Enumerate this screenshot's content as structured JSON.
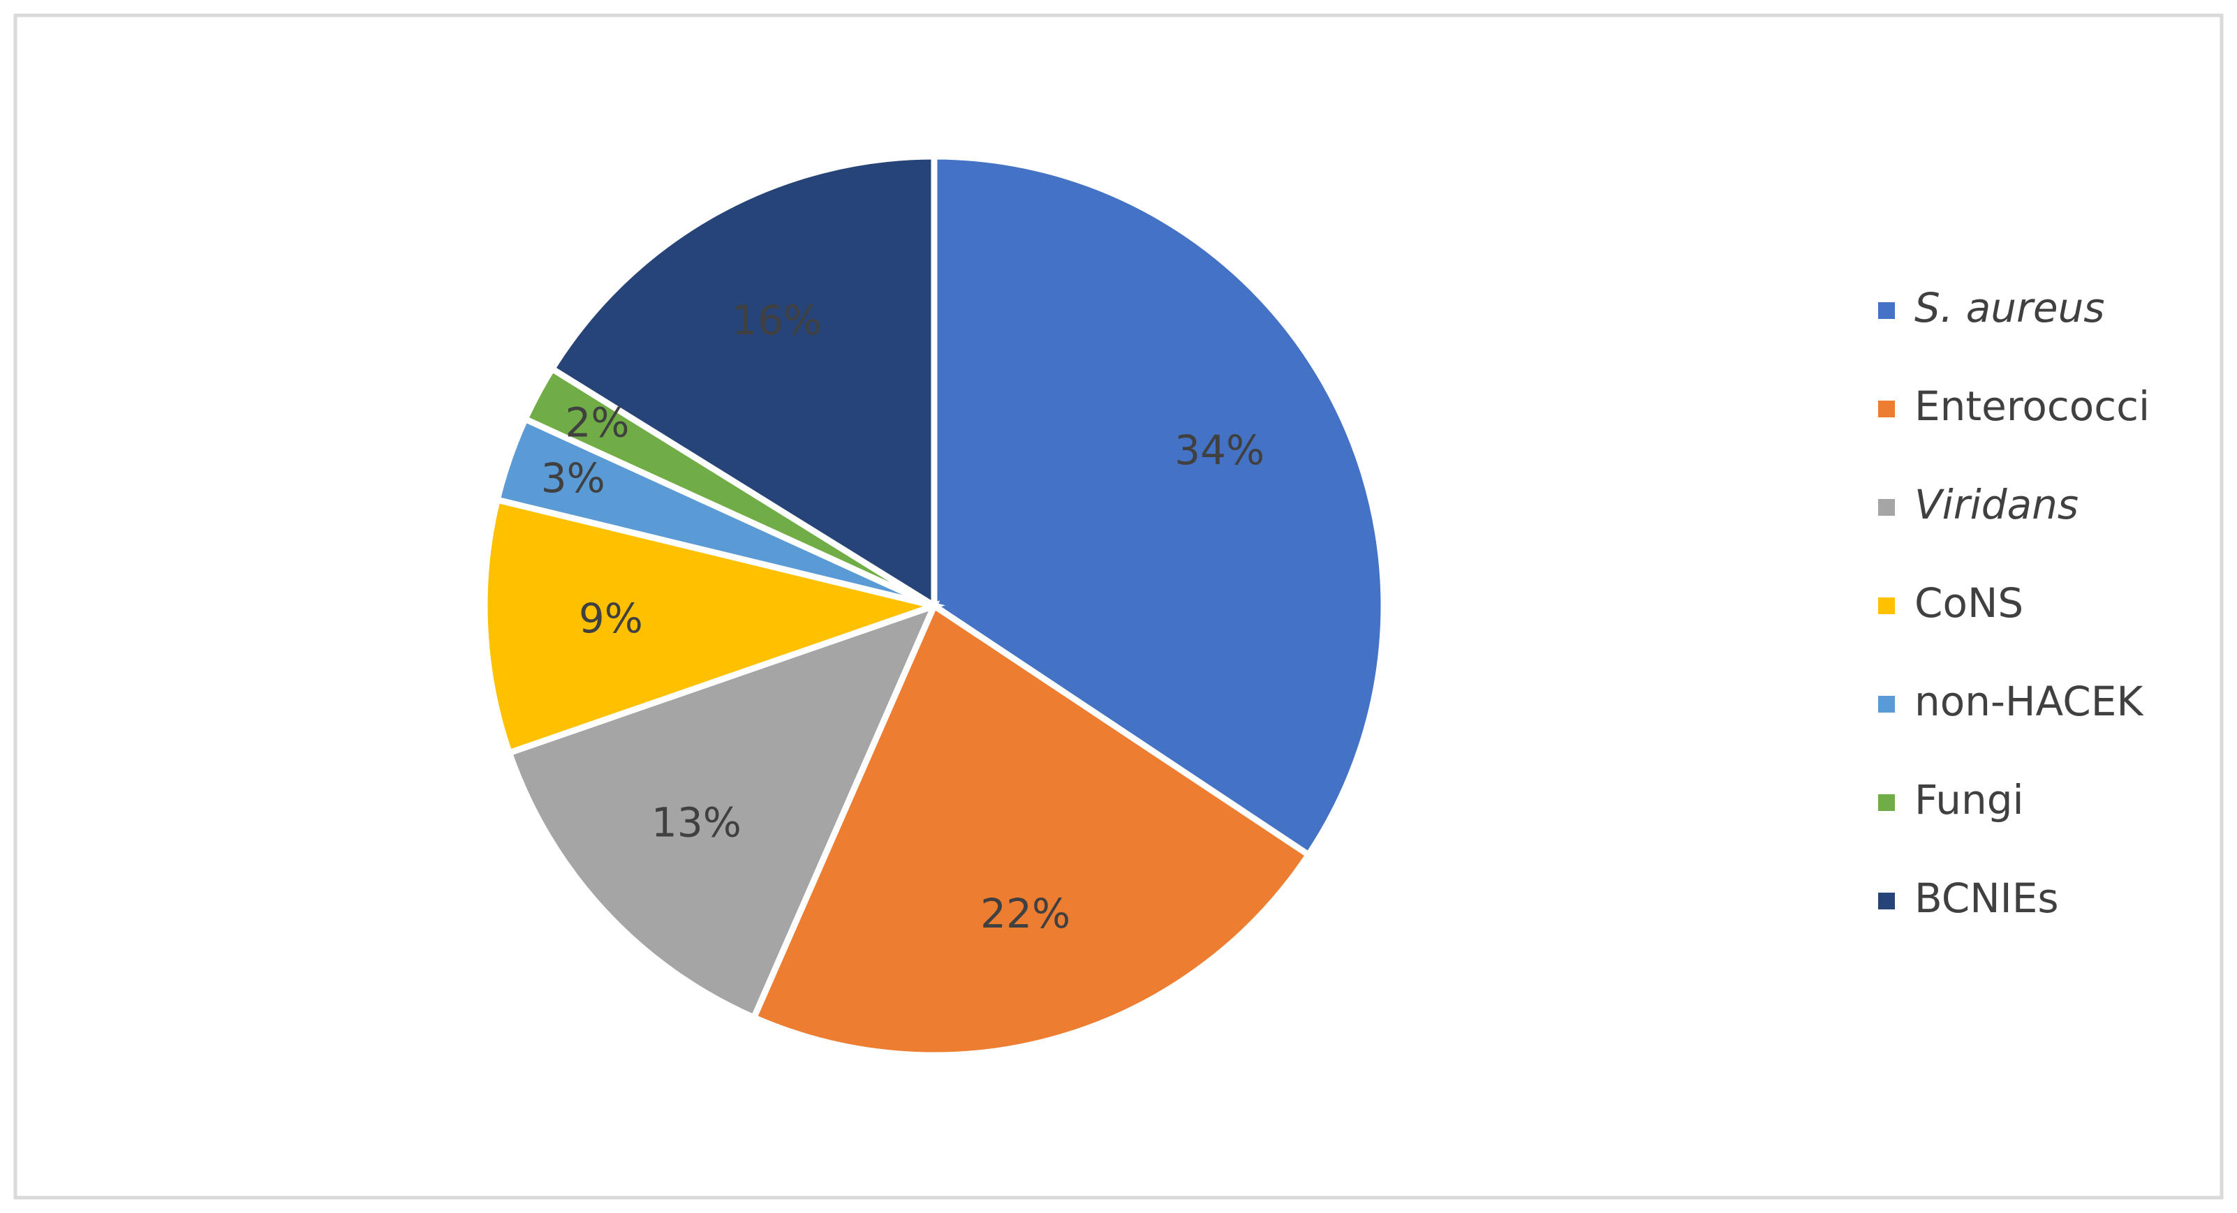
{
  "chart_data": {
    "type": "pie",
    "categories": [
      "S. aureus",
      "Enterococci",
      "Viridans",
      "CoNS",
      "non-HACEK",
      "Fungi",
      "BCNIEs"
    ],
    "values": [
      34,
      22,
      13,
      9,
      3,
      2,
      16
    ],
    "value_labels": [
      "34%",
      "22%",
      "13%",
      "9%",
      "3%",
      "2%",
      "16%"
    ],
    "colors": [
      "#4472c4",
      "#ed7d31",
      "#a5a5a5",
      "#ffc000",
      "#5b9bd5",
      "#70ad47",
      "#264478"
    ],
    "legend": "right"
  }
}
